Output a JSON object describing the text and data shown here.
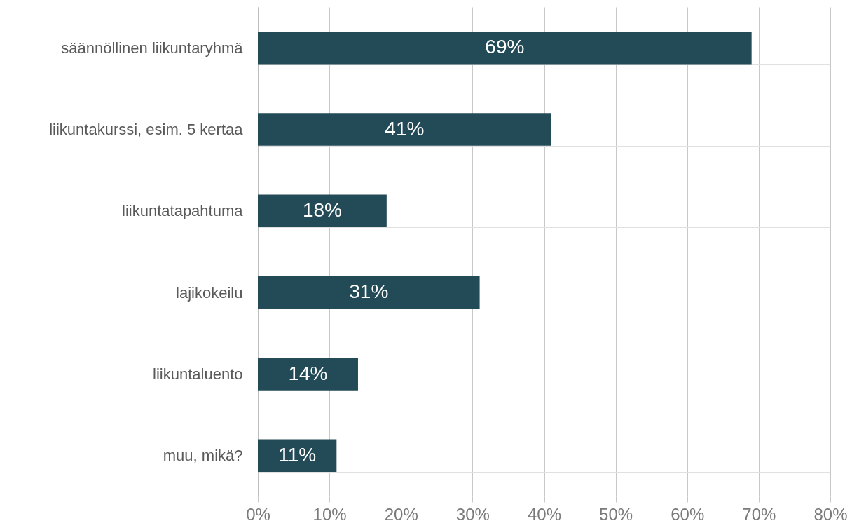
{
  "chart_data": {
    "type": "bar",
    "orientation": "horizontal",
    "categories": [
      "säännöllinen liikuntaryhmä",
      "liikuntakurssi, esim. 5 kertaa",
      "liikuntatapahtuma",
      "lajikokeilu",
      "liikuntaluento",
      "muu, mikä?"
    ],
    "values": [
      69,
      41,
      18,
      31,
      14,
      11
    ],
    "value_labels": [
      "69%",
      "41%",
      "18%",
      "31%",
      "14%",
      "11%"
    ],
    "color": "#224a57",
    "xlim": [
      0,
      80
    ],
    "xticks": [
      {
        "value": 0,
        "label": "0%"
      },
      {
        "value": 10,
        "label": "10%"
      },
      {
        "value": 20,
        "label": "20%"
      },
      {
        "value": 30,
        "label": "30%"
      },
      {
        "value": 40,
        "label": "40%"
      },
      {
        "value": 50,
        "label": "50%"
      },
      {
        "value": 60,
        "label": "60%"
      },
      {
        "value": 70,
        "label": "70%"
      },
      {
        "value": 80,
        "label": "80%"
      }
    ],
    "grid": true
  }
}
